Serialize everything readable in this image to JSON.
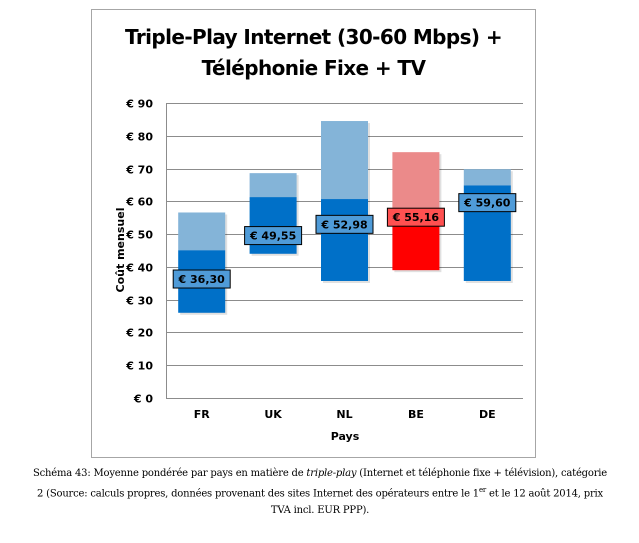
{
  "chart_data": {
    "type": "bar",
    "subtype": "floating-range",
    "title_lines": [
      "Triple-Play Internet (30-60 Mbps) +",
      "Téléphonie Fixe + TV"
    ],
    "xlabel": "Pays",
    "ylabel": "Coût mensuel",
    "ylim": [
      0,
      90
    ],
    "yticks": [
      0,
      10,
      20,
      30,
      40,
      50,
      60,
      70,
      80,
      90
    ],
    "ytick_labels": [
      "€ 0",
      "€ 10",
      "€ 20",
      "€ 30",
      "€ 40",
      "€ 50",
      "€ 60",
      "€ 70",
      "€ 80",
      "€ 90"
    ],
    "grid": true,
    "categories": [
      "FR",
      "UK",
      "NL",
      "BE",
      "DE"
    ],
    "series": [
      {
        "name": "min",
        "values": [
          26.0,
          44.0,
          35.7,
          39.0,
          35.7
        ]
      },
      {
        "name": "lower_range_top",
        "values": [
          45.1,
          61.3,
          60.7,
          55.2,
          64.9
        ]
      },
      {
        "name": "max",
        "values": [
          56.6,
          68.6,
          84.5,
          75.0,
          69.8
        ]
      },
      {
        "name": "weighted_average",
        "values": [
          36.3,
          49.55,
          52.98,
          55.16,
          59.6
        ]
      }
    ],
    "data_labels": [
      "€ 36,30",
      "€ 49,55",
      "€ 52,98",
      "€ 55,16",
      "€ 59,60"
    ],
    "highlight_category": "BE",
    "colors": {
      "dark": "#0070c8",
      "light": "#84b4d8",
      "label_bg": "#4f9bd8",
      "hl_dark": "#ff0000",
      "hl_light": "#eb8a8a",
      "hl_label_bg": "#ff5050",
      "grid": "#8c8c8c"
    }
  },
  "caption": {
    "prefix": "Schéma 43: Moyenne pondérée par pays en matière de ",
    "italic": "triple-play",
    "line1_rest": " (Internet et téléphonie fixe + télévision), catégorie",
    "line2_a": "2 (Source: calculs propres, données provenant des sites Internet des opérateurs entre le 1",
    "sup": "er",
    "line2_b": " et le 12 août 2014, prix",
    "line3": "TVA incl. EUR PPP)."
  }
}
